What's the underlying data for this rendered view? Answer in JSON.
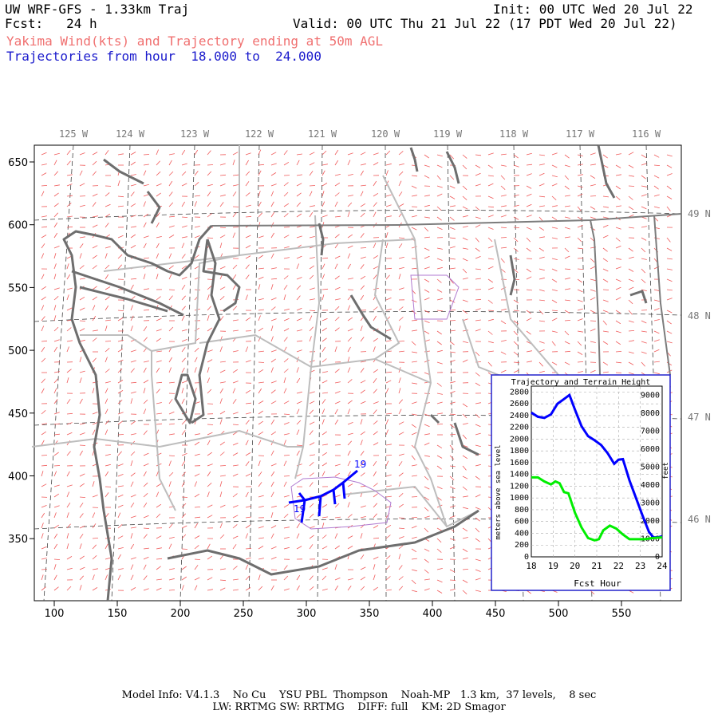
{
  "header": {
    "title": "UW WRF-GFS - 1.33km Traj",
    "fcst": "Fcst:   24 h",
    "init": "Init: 00 UTC Wed 20 Jul 22",
    "valid": "Valid: 00 UTC Thu 21 Jul 22 (17 PDT Wed 20 Jul 22)",
    "subtitle": "Yakima Wind(kts) and Trajectory ending at 50m AGL",
    "traj_range": "Trajectories from hour  18.000 to  24.000"
  },
  "map": {
    "lon_labels": [
      "125 W",
      "124 W",
      "123 W",
      "122 W",
      "121 W",
      "120 W",
      "119 W",
      "118 W",
      "117 W",
      "116 W"
    ],
    "lat_labels": [
      "49 N",
      "48 N",
      "47 N",
      "46 N"
    ],
    "x_ticks": [
      "100",
      "150",
      "200",
      "250",
      "300",
      "350",
      "400",
      "450",
      "500",
      "550"
    ],
    "y_ticks": [
      "650",
      "600",
      "550",
      "500",
      "450",
      "400",
      "350"
    ],
    "traj_label_start": "19",
    "traj_label_end": "19",
    "colors": {
      "coast": "#6e6e6e",
      "border": "#bdbdbd",
      "wind": "#f05a5a",
      "trajectory": "#0000ff",
      "inset_frame": "#2222cc"
    }
  },
  "inset": {
    "title": "Trajectory and Terrain Height",
    "y_left_label": "meters above sea level",
    "y_right_label": "feet",
    "x_label": "Fcst Hour",
    "y_left_ticks": [
      "2800",
      "2600",
      "2400",
      "2200",
      "2000",
      "1800",
      "1600",
      "1400",
      "1200",
      "1000",
      "800",
      "600",
      "400",
      "200",
      "0"
    ],
    "y_right_ticks": [
      "9000",
      "8000",
      "7000",
      "6000",
      "5000",
      "4000",
      "3000",
      "2000",
      "1000",
      "0"
    ],
    "x_ticks": [
      "18",
      "19",
      "20",
      "21",
      "22",
      "23",
      "24"
    ]
  },
  "chart_data": {
    "type": "line",
    "title": "Trajectory and Terrain Height",
    "xlabel": "Fcst Hour",
    "ylabel": "meters above sea level",
    "xlim": [
      18,
      24
    ],
    "ylim": [
      0,
      2900
    ],
    "grid": true,
    "series": [
      {
        "color": "#0000ff",
        "x": [
          18.0,
          18.3,
          18.6,
          18.9,
          19.2,
          19.5,
          19.75,
          20.0,
          20.3,
          20.6,
          20.9,
          21.2,
          21.5,
          21.8,
          22.0,
          22.2,
          22.5,
          22.8,
          23.1,
          23.4,
          23.6,
          23.8,
          24.0
        ],
        "y": [
          2450,
          2380,
          2360,
          2420,
          2600,
          2680,
          2750,
          2500,
          2220,
          2050,
          1980,
          1900,
          1760,
          1580,
          1650,
          1660,
          1300,
          1000,
          700,
          420,
          330,
          330,
          350
        ]
      },
      {
        "color": "#00ee00",
        "x": [
          18.0,
          18.3,
          18.6,
          18.9,
          19.1,
          19.3,
          19.5,
          19.7,
          20.0,
          20.3,
          20.6,
          20.9,
          21.1,
          21.3,
          21.6,
          21.9,
          22.2,
          22.5,
          22.8,
          23.2,
          23.6,
          24.0
        ],
        "y": [
          1350,
          1350,
          1280,
          1230,
          1280,
          1250,
          1100,
          1080,
          750,
          500,
          320,
          280,
          300,
          450,
          530,
          480,
          380,
          300,
          300,
          300,
          320,
          330
        ]
      }
    ]
  },
  "footer": {
    "line1": "Model Info: V4.1.3    No Cu    YSU PBL  Thompson    Noah-MP   1.3 km,  37 levels,    8 sec",
    "line2": "LW: RRTMG SW: RRTMG    DIFF: full    KM: 2D Smagor"
  }
}
